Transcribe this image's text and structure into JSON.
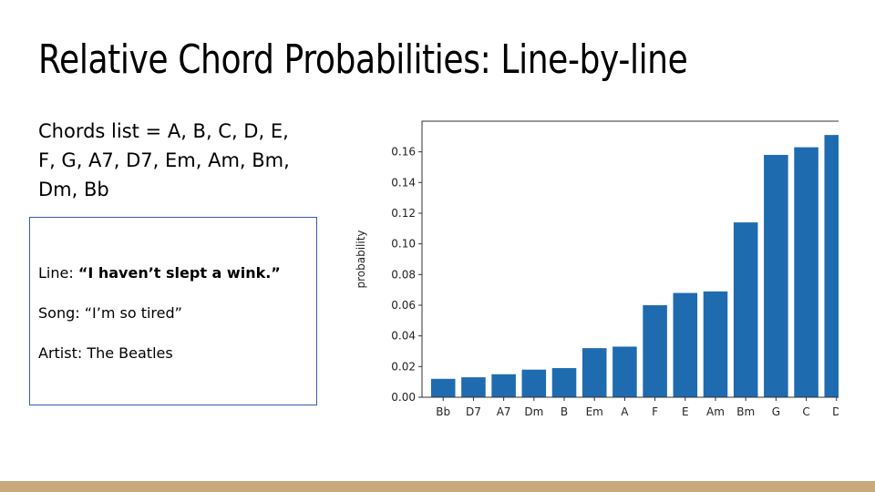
{
  "slide": {
    "title": "Relative Chord Probabilities: Line-by-line",
    "chords_text": "Chords list = A, B, C, D, E, F, G, A7, D7, Em, Am, Bm, Dm, Bb"
  },
  "info": {
    "line_label": "Line: ",
    "line_value": "“I haven’t slept a wink.”",
    "song": "Song: “I’m so tired”",
    "artist": "Artist: The Beatles"
  },
  "chart_data": {
    "type": "bar",
    "categories": [
      "Bb",
      "D7",
      "A7",
      "Dm",
      "B",
      "Em",
      "A",
      "F",
      "E",
      "Am",
      "Bm",
      "G",
      "C",
      "D"
    ],
    "values": [
      0.012,
      0.013,
      0.015,
      0.018,
      0.019,
      0.032,
      0.033,
      0.06,
      0.068,
      0.069,
      0.114,
      0.158,
      0.163,
      0.171
    ],
    "ylabel": "probability",
    "ylim": [
      0,
      0.18
    ],
    "yticks": [
      0.0,
      0.02,
      0.04,
      0.06,
      0.08,
      0.1,
      0.12,
      0.14,
      0.16
    ],
    "ytick_labels": [
      "0.00",
      "0.02",
      "0.04",
      "0.06",
      "0.08",
      "0.10",
      "0.12",
      "0.14",
      "0.16"
    ],
    "bar_color": "#1f6bb0",
    "grid": false
  },
  "colors": {
    "footer": "#c9a87c",
    "box_border": "#3b5ba5"
  }
}
